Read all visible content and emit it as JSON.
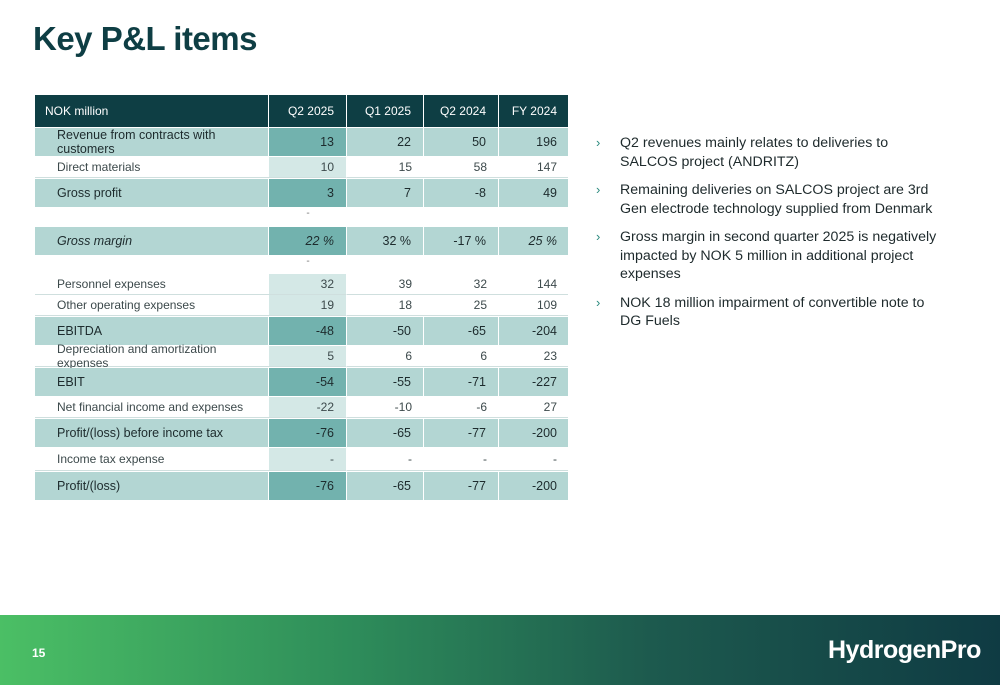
{
  "title": "Key P&L items",
  "table": {
    "header": [
      "NOK million",
      "Q2 2025",
      "Q1 2025",
      "Q2 2024",
      "FY 2024"
    ],
    "rows": [
      {
        "label": "Revenue from contracts with customers",
        "values": [
          "13",
          "22",
          "50",
          "196"
        ]
      },
      {
        "label": "Direct materials",
        "values": [
          "10",
          "15",
          "58",
          "147"
        ]
      },
      {
        "label": "Gross profit",
        "values": [
          "3",
          "7",
          "-8",
          "49"
        ]
      },
      {
        "label": "",
        "values": [
          "-",
          "",
          "",
          ""
        ]
      },
      {
        "label": "Gross margin",
        "values": [
          "22 %",
          "32 %",
          "-17 %",
          "25 %"
        ]
      },
      {
        "label": "",
        "values": [
          "-",
          "",
          "",
          ""
        ]
      },
      {
        "label": "Personnel expenses",
        "values": [
          "32",
          "39",
          "32",
          "144"
        ]
      },
      {
        "label": "Other operating expenses",
        "values": [
          "19",
          "18",
          "25",
          "109"
        ]
      },
      {
        "label": "EBITDA",
        "values": [
          "-48",
          "-50",
          "-65",
          "-204"
        ]
      },
      {
        "label": "Depreciation and amortization expenses",
        "values": [
          "5",
          "6",
          "6",
          "23"
        ]
      },
      {
        "label": "EBIT",
        "values": [
          "-54",
          "-55",
          "-71",
          "-227"
        ]
      },
      {
        "label": "Net financial income and expenses",
        "values": [
          "-22",
          "-10",
          "-6",
          "27"
        ]
      },
      {
        "label": "Profit/(loss) before income tax",
        "values": [
          "-76",
          "-65",
          "-77",
          "-200"
        ]
      },
      {
        "label": "Income tax expense",
        "values": [
          "-",
          "-",
          "-",
          "-"
        ]
      },
      {
        "label": "Profit/(loss)",
        "values": [
          "-76",
          "-65",
          "-77",
          "-200"
        ]
      }
    ]
  },
  "bullets": [
    "Q2 revenues mainly relates to deliveries to SALCOS project (ANDRITZ)",
    "Remaining deliveries on SALCOS project are 3rd Gen electrode technology supplied from Denmark",
    "Gross margin in second quarter 2025 is negatively impacted by NOK 5 million in additional project expenses",
    "NOK 18 million impairment of convertible note to DG Fuels"
  ],
  "bullet_icon": "chevron-right-icon",
  "page_number": "15",
  "logo_text": "HydrogenPro",
  "colors": {
    "title": "#0e3e44",
    "header_bg": "#0e3e44",
    "bold_row_bg": "#b3d6d3",
    "highlight_col_bg": "#72b2ae",
    "footer_gradient_start": "#4bbf65",
    "footer_gradient_end": "#0f3b43"
  }
}
